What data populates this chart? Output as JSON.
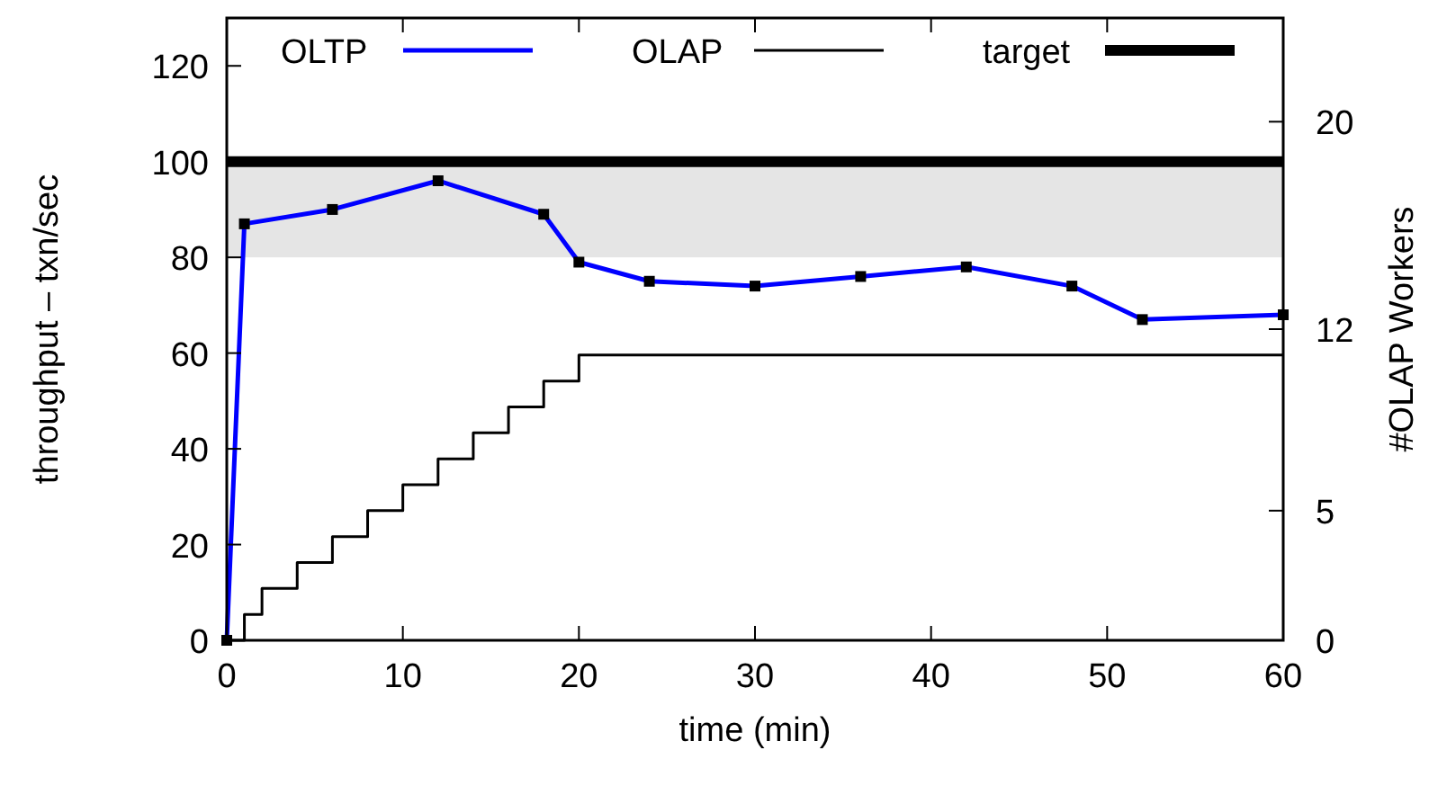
{
  "chart_data": {
    "type": "line",
    "xlabel": "time (min)",
    "ylabel": "throughput – txn/sec",
    "y2label": "#OLAP Workers",
    "xlim": [
      0,
      60
    ],
    "xticks": [
      0,
      10,
      20,
      30,
      40,
      50,
      60
    ],
    "ylim": [
      0,
      130
    ],
    "yticks": [
      0,
      20,
      40,
      60,
      80,
      100,
      120
    ],
    "y2lim": [
      0,
      24
    ],
    "y2ticks": [
      0,
      5,
      12,
      20
    ],
    "legend": "top",
    "grid": false,
    "series": [
      {
        "name": "OLTP",
        "color": "#0000ff",
        "marker": "square",
        "x": [
          0,
          1,
          6,
          12,
          18,
          20,
          24,
          30,
          36,
          42,
          48,
          52,
          60
        ],
        "values": [
          0,
          87,
          90,
          96,
          89,
          79,
          75,
          74,
          76,
          78,
          74,
          67,
          68
        ]
      },
      {
        "name": "OLAP",
        "type": "step",
        "axis": "y2",
        "color": "#000000",
        "marker": "none",
        "x": [
          0,
          1,
          2,
          4,
          6,
          8,
          10,
          12,
          14,
          16,
          18,
          20,
          60
        ],
        "values": [
          0,
          1,
          2,
          3,
          4,
          5,
          6,
          7,
          8,
          9,
          10,
          11,
          11
        ]
      }
    ],
    "ref_lines": [
      {
        "axis": "y",
        "value": 100,
        "label": "target",
        "color": "#000000"
      }
    ],
    "bands": [
      {
        "axis": "y",
        "from": 80,
        "to": 100,
        "color": "#e5e5e5"
      }
    ]
  }
}
